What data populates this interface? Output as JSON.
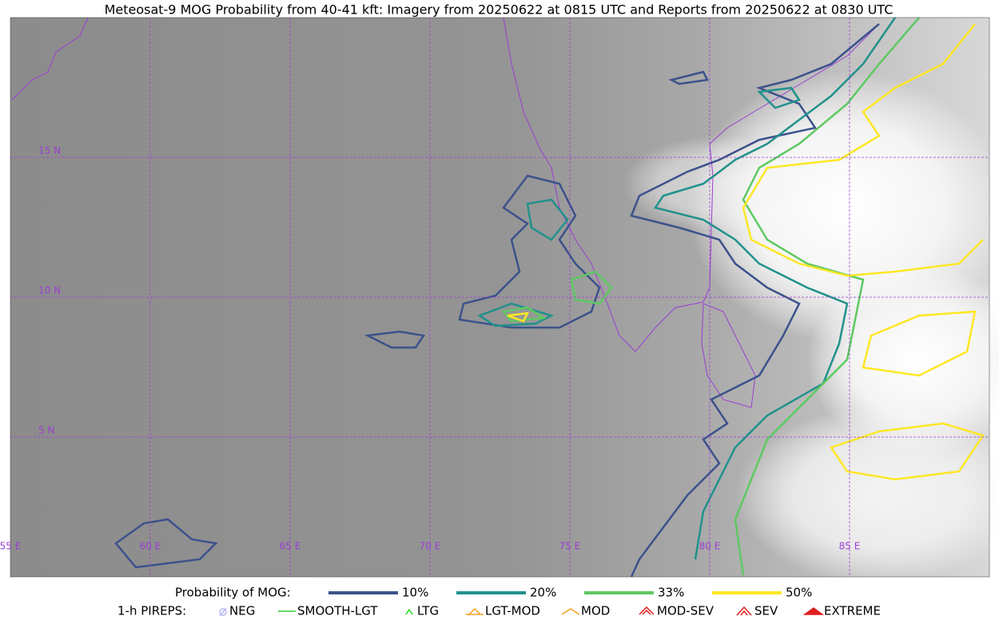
{
  "title": "Meteosat-9 MOG Probability from 40-41 kft: Imagery from 20250622 at 0815 UTC and Reports from 20250622 at 0830 UTC",
  "map": {
    "lat_labels": [
      "15 N",
      "10 N",
      "5 N"
    ],
    "lon_labels": [
      "55 E",
      "60 E",
      "65 E",
      "70 E",
      "75 E",
      "80 E",
      "85 E"
    ],
    "grid_color": "#9a3fd0"
  },
  "legend": {
    "title": "Probability of MOG:",
    "items": [
      {
        "label": "10%",
        "color": "#3b528b"
      },
      {
        "label": "20%",
        "color": "#21918c"
      },
      {
        "label": "33%",
        "color": "#5ec962"
      },
      {
        "label": "50%",
        "color": "#fde725"
      }
    ]
  },
  "pireps": {
    "title": "1-h PIREPS:",
    "items": [
      {
        "label": "NEG",
        "color": "#b8b8f0"
      },
      {
        "label": "SMOOTH-LGT",
        "color": "#32cd32"
      },
      {
        "label": "LTG",
        "color": "#22dd22"
      },
      {
        "label": "LGT-MOD",
        "color": "#f0a020"
      },
      {
        "label": "MOD",
        "color": "#f0a020"
      },
      {
        "label": "MOD-SEV",
        "color": "#e02020"
      },
      {
        "label": "SEV",
        "color": "#e02020"
      },
      {
        "label": "EXTREME",
        "color": "#e02020"
      }
    ]
  }
}
